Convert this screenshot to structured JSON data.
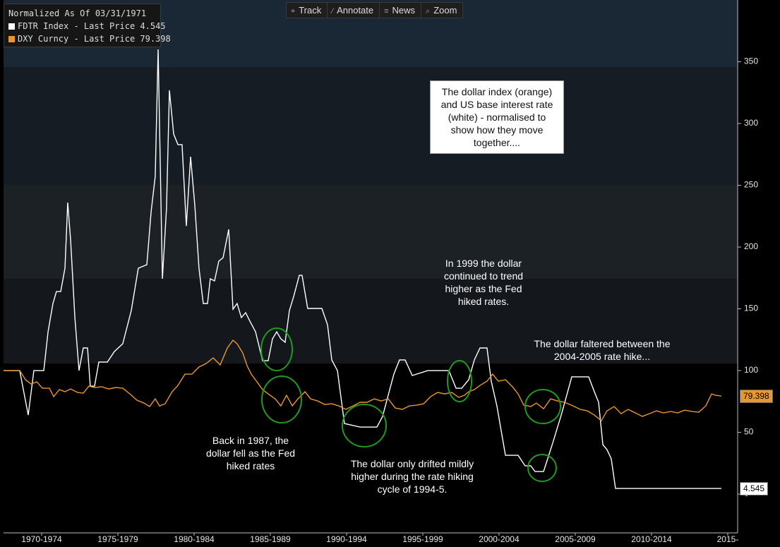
{
  "toolbar": [
    "Track",
    "Annotate",
    "News",
    "Zoom"
  ],
  "chart_data": {
    "type": "line",
    "title": "Normalized As Of 03/31/1971",
    "xlim": [
      1970,
      2018.15
    ],
    "ylim": [
      -31.4,
      400
    ],
    "xticks": [
      {
        "value": 1972.5,
        "label": "1970-1974"
      },
      {
        "value": 1977.5,
        "label": "1975-1979"
      },
      {
        "value": 1982.5,
        "label": "1980-1984"
      },
      {
        "value": 1987.5,
        "label": "1985-1989"
      },
      {
        "value": 1992.5,
        "label": "1990-1994"
      },
      {
        "value": 1997.5,
        "label": "1995-1999"
      },
      {
        "value": 2002.5,
        "label": "2000-2004"
      },
      {
        "value": 2007.5,
        "label": "2005-2009"
      },
      {
        "value": 2012.5,
        "label": "2010-2014"
      },
      {
        "value": 2017.5,
        "label": "2015-"
      }
    ],
    "yticks": [
      0,
      50,
      100,
      150,
      200,
      250,
      300,
      350
    ],
    "series": [
      {
        "name": "FDTR Index - Last Price 4.545",
        "color": "#ffffff",
        "x": [
          1970.0,
          1971.06,
          1971.62,
          1971.99,
          1972.64,
          1972.92,
          1973.24,
          1973.47,
          1973.75,
          1974.03,
          1974.21,
          1974.4,
          1974.68,
          1974.95,
          1975.23,
          1975.51,
          1975.69,
          1975.97,
          1976.25,
          1976.81,
          1977.27,
          1977.82,
          1978.38,
          1978.84,
          1979.4,
          1979.68,
          1979.95,
          1980.14,
          1980.42,
          1980.69,
          1980.88,
          1981.16,
          1981.44,
          1981.71,
          1981.99,
          1982.27,
          1982.55,
          1982.82,
          1983.1,
          1983.38,
          1983.56,
          1983.84,
          1984.12,
          1984.4,
          1984.77,
          1985.05,
          1985.32,
          1985.6,
          1985.88,
          1986.16,
          1986.53,
          1986.99,
          1987.36,
          1987.64,
          1987.92,
          1988.19,
          1988.47,
          1988.75,
          1989.03,
          1989.4,
          1989.58,
          1989.95,
          1990.88,
          1991.25,
          1991.53,
          1991.9,
          1992.36,
          1993.38,
          1994.49,
          1994.86,
          1995.23,
          1995.6,
          1995.97,
          1996.34,
          1996.81,
          1997.82,
          1999.21,
          1999.68,
          2000.05,
          2000.51,
          2000.88,
          2001.25,
          2001.71,
          2001.99,
          2002.36,
          2002.64,
          2002.92,
          2003.75,
          2004.21,
          2004.58,
          2004.86,
          2005.42,
          2005.69,
          2006.06,
          2006.62,
          2007.27,
          2008.38,
          2008.75,
          2009.03,
          2009.31,
          2009.58,
          2009.86,
          2010.14,
          2017.08
        ],
        "values": [
          100,
          100,
          64,
          100,
          100,
          131.4,
          154.3,
          164,
          164,
          182.9,
          236,
          205.7,
          142.9,
          100,
          118.3,
          118.3,
          87.4,
          87.4,
          106.9,
          106.9,
          115.4,
          121.7,
          148.6,
          182.9,
          185.7,
          228.6,
          257.1,
          360,
          174.3,
          231.4,
          326.9,
          291.4,
          282.9,
          282.9,
          217.1,
          273.1,
          233.1,
          182.9,
          154.3,
          154.3,
          174.3,
          172.6,
          188.6,
          191.4,
          214.3,
          149.7,
          154.3,
          142.9,
          146.9,
          140,
          131.4,
          108,
          108,
          125.7,
          131.4,
          125.7,
          122.9,
          148.6,
          160,
          177.1,
          177.1,
          150.3,
          150.3,
          137.1,
          108.6,
          100,
          57.1,
          54.3,
          54.3,
          62.9,
          80,
          97.1,
          108.6,
          108.6,
          96,
          100,
          100,
          85.7,
          85.7,
          92.6,
          108.6,
          118.3,
          118.3,
          91.4,
          71.4,
          51.4,
          31.4,
          31.4,
          22.9,
          22.9,
          18.3,
          18.3,
          28.6,
          42.9,
          65.7,
          94.9,
          94.9,
          82.9,
          74.3,
          40,
          36,
          28.6,
          4.545,
          4.545
        ]
      },
      {
        "name": "DXY Curncy - Last Price 79.398",
        "color": "#e8962e",
        "x": [
          1970.0,
          1971.06,
          1971.44,
          1971.81,
          1972.18,
          1972.55,
          1973.01,
          1973.29,
          1973.66,
          1974.03,
          1974.4,
          1974.86,
          1975.23,
          1975.6,
          1975.97,
          1976.44,
          1976.9,
          1977.36,
          1977.82,
          1978.29,
          1978.75,
          1979.21,
          1979.58,
          1979.95,
          1980.23,
          1980.6,
          1981.06,
          1981.44,
          1981.9,
          1982.36,
          1982.82,
          1983.29,
          1983.75,
          1984.21,
          1984.68,
          1985.05,
          1985.32,
          1985.69,
          1985.97,
          1986.25,
          1986.62,
          1986.99,
          1987.36,
          1987.82,
          1988.19,
          1988.56,
          1988.94,
          1989.31,
          1989.77,
          1990.14,
          1990.6,
          1991.06,
          1991.53,
          1991.99,
          1992.45,
          1992.92,
          1993.38,
          1993.84,
          1994.31,
          1994.77,
          1995.23,
          1995.69,
          1996.16,
          1996.62,
          1997.08,
          1997.55,
          1998.01,
          1998.47,
          1998.94,
          1999.4,
          1999.86,
          2000.23,
          2000.51,
          2000.88,
          2001.25,
          2001.71,
          2002.08,
          2002.45,
          2002.92,
          2003.38,
          2003.75,
          2004.12,
          2004.58,
          2004.95,
          2005.42,
          2005.88,
          2006.34,
          2006.81,
          2007.36,
          2007.82,
          2008.29,
          2008.75,
          2009.21,
          2009.58,
          2010.05,
          2010.51,
          2010.97,
          2011.44,
          2011.9,
          2012.36,
          2012.82,
          2013.29,
          2013.75,
          2014.21,
          2014.68,
          2015.14,
          2015.6,
          2016.06,
          2016.44,
          2016.71,
          2017.08
        ],
        "values": [
          100,
          100,
          92.6,
          89.1,
          90.9,
          85.7,
          85.7,
          78.9,
          84.6,
          82.9,
          85.1,
          82.3,
          81.7,
          87.4,
          86.3,
          86.9,
          85.1,
          86.3,
          85.7,
          81.1,
          76,
          73.7,
          70.9,
          77.1,
          71.4,
          73.1,
          82.9,
          88,
          97.1,
          97.1,
          102.9,
          105.7,
          110.3,
          104.6,
          118.3,
          124.6,
          121.7,
          114.3,
          104,
          97.1,
          90.9,
          84.6,
          81.1,
          77.1,
          71.4,
          80,
          71.4,
          77.1,
          82.9,
          77.1,
          75.4,
          72.6,
          73.1,
          71.4,
          68.6,
          71.4,
          74.3,
          74.3,
          77.1,
          75.4,
          77.1,
          69.7,
          68.6,
          71.4,
          72,
          73.1,
          78.9,
          82.3,
          81.1,
          82.3,
          78.3,
          80,
          82.9,
          84.6,
          88,
          91.4,
          97.1,
          91.4,
          92.6,
          86.9,
          81.1,
          72,
          70.9,
          73.7,
          69.1,
          77.1,
          75.4,
          74.3,
          71.4,
          68.6,
          67.4,
          64,
          59.4,
          67.4,
          70.9,
          65.1,
          68.6,
          65.7,
          62.9,
          65.1,
          67.4,
          65.7,
          66.9,
          65.7,
          68,
          66.9,
          66.3,
          71.4,
          81.1,
          80,
          79.398
        ]
      }
    ],
    "annotations": [
      "The dollar index (orange) and US base interest rate (white) - normalised to show how they move together....",
      "In 1999 the dollar continued to trend higher as the Fed hiked rates.",
      "The dollar faltered between the 2004-2005 rate hike...",
      "Back in 1987, the dollar fell as the Fed hiked rates",
      "The dollar only drifted mildly higher during the rate hiking cycle of 1994-5."
    ]
  }
}
